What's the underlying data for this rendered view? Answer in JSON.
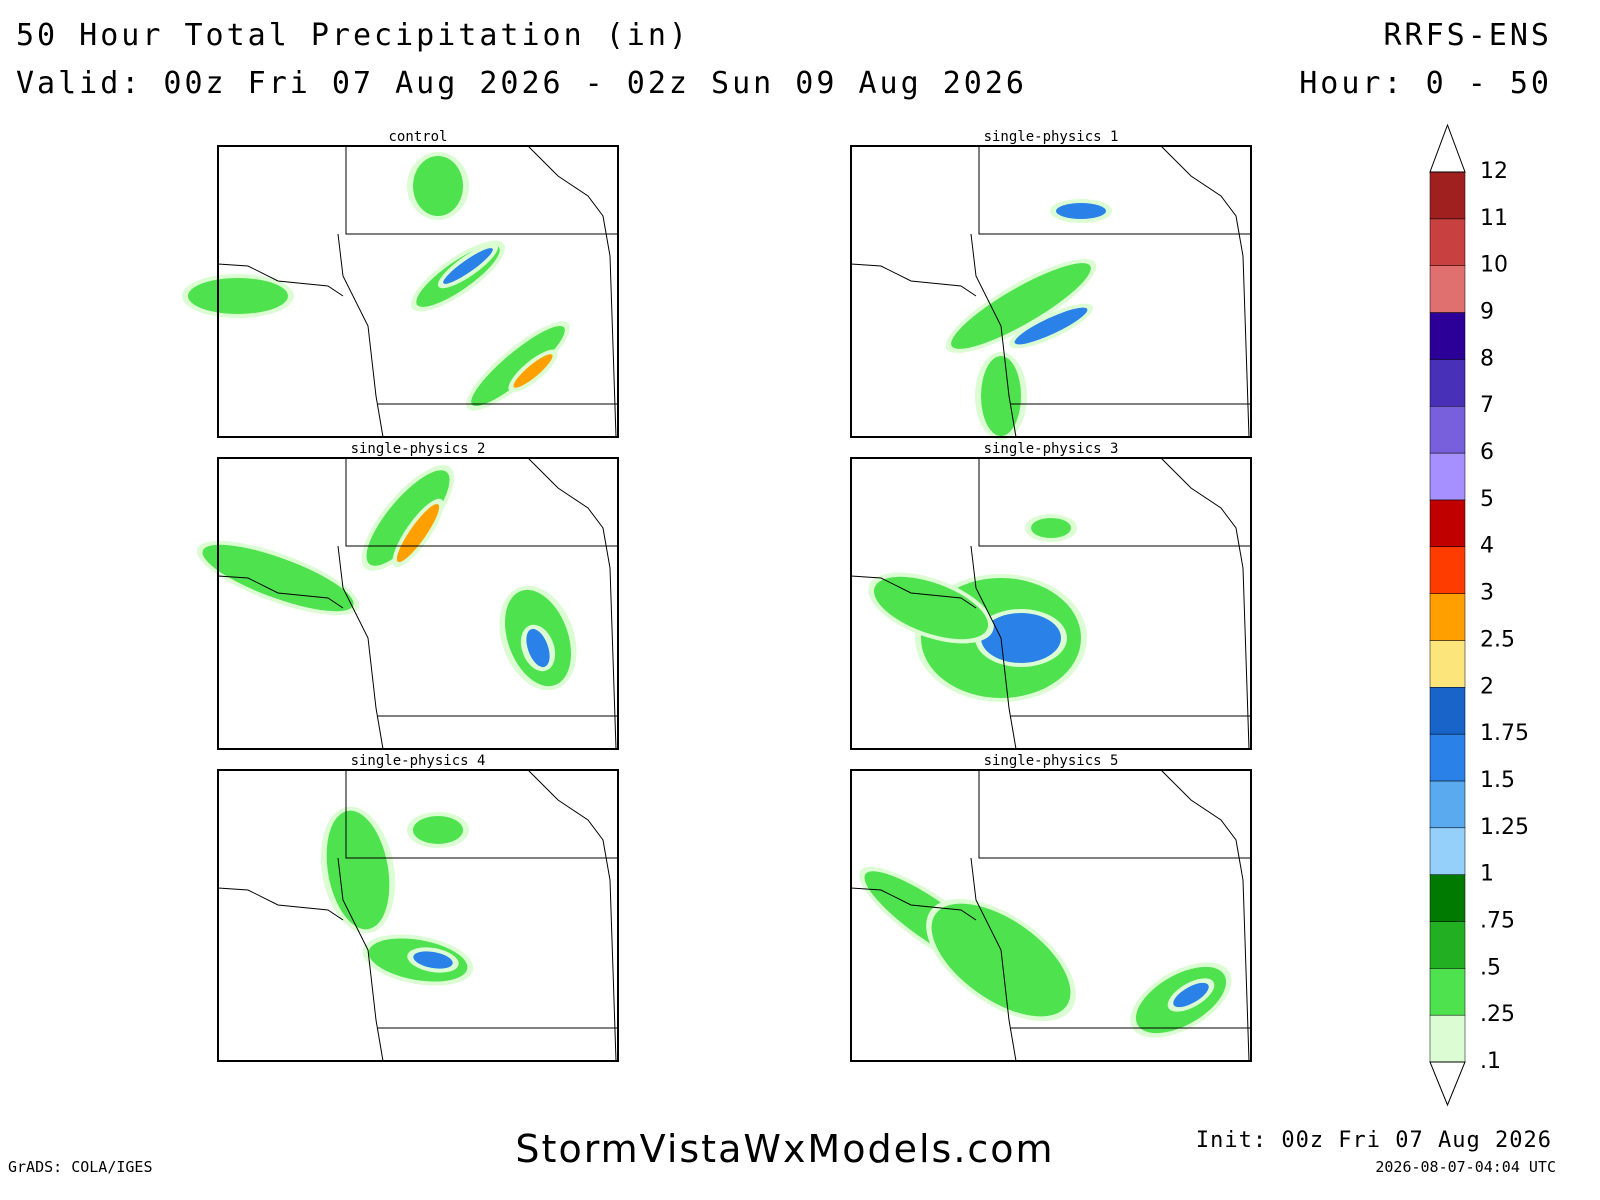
{
  "header": {
    "title": "50 Hour Total Precipitation (in)",
    "valid": "Valid: 00z Fri 07 Aug 2026 - 02z Sun 09 Aug 2026",
    "model": "RRFS-ENS",
    "hours": "Hour: 0 - 50"
  },
  "panels": [
    "control",
    "single-physics 1",
    "single-physics 2",
    "single-physics 3",
    "single-physics 4",
    "single-physics 5"
  ],
  "colorbar": {
    "labels": [
      ".1",
      ".25",
      ".5",
      ".75",
      "1",
      "1.25",
      "1.5",
      "1.75",
      "2",
      "2.5",
      "3",
      "4",
      "5",
      "6",
      "7",
      "8",
      "9",
      "10",
      "11",
      "12"
    ],
    "colors": [
      "#dcfcd4",
      "#4ee34e",
      "#22b022",
      "#007a00",
      "#94d0fa",
      "#5aaaf0",
      "#2a82e8",
      "#1864c8",
      "#fce57a",
      "#ffa000",
      "#ff3c00",
      "#c00000",
      "#a690ff",
      "#7860dc",
      "#4830b8",
      "#2c0098",
      "#e07070",
      "#c84040",
      "#a02020"
    ]
  },
  "footer": {
    "credit": "GrADS: COLA/IGES",
    "site": "StormVistaWxModels.com",
    "init": "Init: 00z Fri 07 Aug 2026",
    "timestamp": "2026-08-07-04:04 UTC"
  }
}
